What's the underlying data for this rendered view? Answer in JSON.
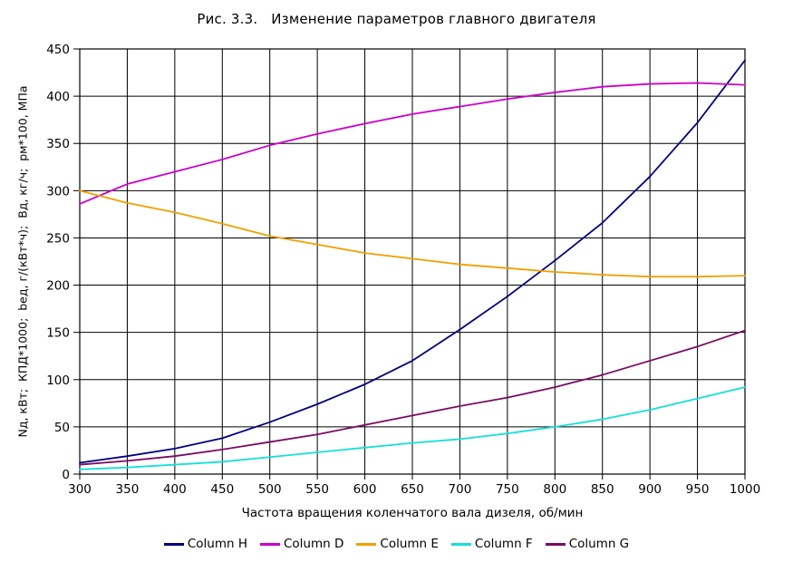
{
  "title": "Рис. 3.3.   Изменение параметров главного двигателя",
  "chart_data": {
    "type": "line",
    "title": "Рис. 3.3.   Изменение параметров главного двигателя",
    "xlabel": "Частота вращения коленчатого вала дизеля, об/мин",
    "ylabel": "Nд, кВт;  КПД*1000;  bед, г/(кВт*ч);  Вд, кг/ч;  рм*100, МПа",
    "xlim": [
      300,
      1000
    ],
    "ylim": [
      0,
      450
    ],
    "xticks": [
      300,
      350,
      400,
      450,
      500,
      550,
      600,
      650,
      700,
      750,
      800,
      850,
      900,
      950,
      1000
    ],
    "yticks": [
      0,
      50,
      100,
      150,
      200,
      250,
      300,
      350,
      400,
      450
    ],
    "grid": true,
    "grid_color": "#000000",
    "legend_position": "bottom",
    "x": [
      300,
      350,
      400,
      450,
      500,
      550,
      600,
      650,
      700,
      750,
      800,
      850,
      900,
      950,
      1000
    ],
    "series": [
      {
        "name": "Column H",
        "color": "#000080",
        "values": [
          12,
          19,
          27,
          38,
          55,
          74,
          95,
          120,
          153,
          188,
          226,
          266,
          315,
          372,
          438
        ]
      },
      {
        "name": "Column D",
        "color": "#CC00CC",
        "values": [
          286,
          307,
          320,
          333,
          348,
          360,
          371,
          381,
          389,
          397,
          404,
          410,
          413,
          414,
          412
        ]
      },
      {
        "name": "Column E",
        "color": "#F0A000",
        "values": [
          300,
          287,
          277,
          265,
          252,
          243,
          234,
          228,
          222,
          218,
          214,
          211,
          209,
          209,
          210
        ]
      },
      {
        "name": "Column F",
        "color": "#15E0D8",
        "values": [
          5,
          7,
          10,
          13,
          18,
          23,
          28,
          33,
          37,
          43,
          50,
          58,
          68,
          80,
          92
        ]
      },
      {
        "name": "Column G",
        "color": "#7A0B61",
        "values": [
          10,
          14,
          19,
          26,
          34,
          42,
          52,
          62,
          72,
          81,
          92,
          105,
          120,
          135,
          152
        ]
      }
    ]
  }
}
